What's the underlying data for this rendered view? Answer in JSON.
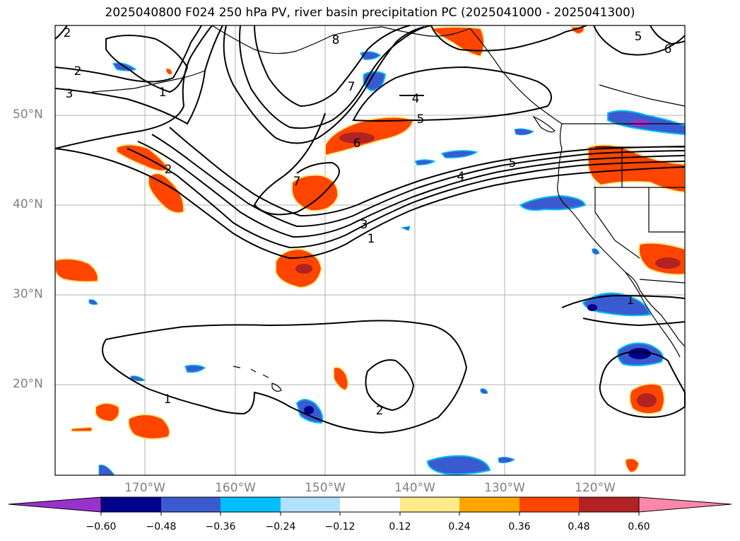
{
  "title": "2025040800 F024 250 hPa PV, river basin precipitation PC (2025041000 - 2025041300)",
  "lat_labels": [
    "50°N",
    "40°N",
    "30°N",
    "20°N"
  ],
  "lon_labels": [
    "170°W",
    "160°W",
    "150°W",
    "140°W",
    "130°W",
    "120°W"
  ],
  "colorbar": {
    "ticks": [
      "−0.60",
      "−0.48",
      "−0.36",
      "−0.24",
      "−0.12",
      "0.12",
      "0.24",
      "0.36",
      "0.48",
      "0.60"
    ],
    "colors": [
      "#9932cc",
      "#00008b",
      "#3a5bd0",
      "#00bfff",
      "#b0e2ff",
      "#ffffff",
      "#ffeb8a",
      "#ffa500",
      "#ff4500",
      "#b22222",
      "#ff88aa"
    ]
  },
  "contour_labels": [
    "2",
    "2",
    "3",
    "1",
    "8",
    "7",
    "4",
    "5",
    "6",
    "2",
    "7",
    "5",
    "4",
    "3",
    "1",
    "5",
    "6",
    "1",
    "1",
    "2"
  ],
  "palette": {
    "frame": "#000000",
    "grid": "#b0b0b0",
    "label_gray": "#808080",
    "pos_dark": "#b22222",
    "pos_mid": "#ff4500",
    "pos_light": "#ffa500",
    "pos_edge": "#ffeb8a",
    "neg_dark": "#00008b",
    "neg_mid": "#3a5bd0",
    "neg_light": "#00bfff",
    "neg_edge": "#b0e2ff"
  }
}
